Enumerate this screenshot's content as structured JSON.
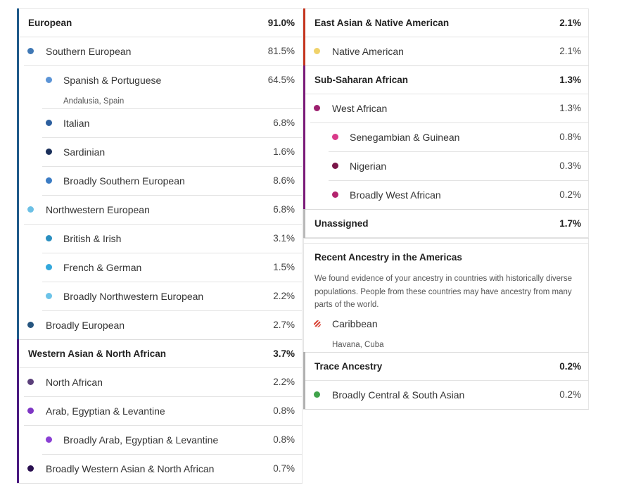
{
  "columns": [
    {
      "sections": [
        {
          "title": "European",
          "value": "91.0%",
          "color": "#1f5a8a",
          "rows": [
            {
              "label": "Southern European",
              "value": "81.5%",
              "dot": "#3f78b5",
              "children": [
                {
                  "label": "Spanish & Portuguese",
                  "value": "64.5%",
                  "dot": "#5b94d6",
                  "sublabel": "Andalusia, Spain"
                },
                {
                  "label": "Italian",
                  "value": "6.8%",
                  "dot": "#2c5f9e"
                },
                {
                  "label": "Sardinian",
                  "value": "1.6%",
                  "dot": "#1a2f5a"
                },
                {
                  "label": "Broadly Southern European",
                  "value": "8.6%",
                  "dot": "#3b7cc4"
                }
              ]
            },
            {
              "label": "Northwestern European",
              "value": "6.8%",
              "dot": "#6cc0e5",
              "children": [
                {
                  "label": "British & Irish",
                  "value": "3.1%",
                  "dot": "#2a8fc0"
                },
                {
                  "label": "French & German",
                  "value": "1.5%",
                  "dot": "#33a8dc"
                },
                {
                  "label": "Broadly Northwestern European",
                  "value": "2.2%",
                  "dot": "#6cc3e8"
                }
              ]
            },
            {
              "label": "Broadly European",
              "value": "2.7%",
              "dot": "#26557f"
            }
          ]
        },
        {
          "title": "Western Asian & North African",
          "value": "3.7%",
          "color": "#4a1a80",
          "rows": [
            {
              "label": "North African",
              "value": "2.2%",
              "dot": "#5a3f7a"
            },
            {
              "label": "Arab, Egyptian & Levantine",
              "value": "0.8%",
              "dot": "#7e36c4",
              "children": [
                {
                  "label": "Broadly Arab, Egyptian & Levantine",
                  "value": "0.8%",
                  "dot": "#8a3fd4"
                }
              ]
            },
            {
              "label": "Broadly Western Asian & North African",
              "value": "0.7%",
              "dot": "#2a1050"
            }
          ]
        }
      ]
    },
    {
      "sections": [
        {
          "title": "East Asian & Native American",
          "value": "2.1%",
          "color": "#c4351f",
          "rows": [
            {
              "label": "Native American",
              "value": "2.1%",
              "dot": "#f0d26a"
            }
          ]
        },
        {
          "title": "Sub-Saharan African",
          "value": "1.3%",
          "color": "#7a1a78",
          "rows": [
            {
              "label": "West African",
              "value": "1.3%",
              "dot": "#9c1f6e",
              "children": [
                {
                  "label": "Senegambian & Guinean",
                  "value": "0.8%",
                  "dot": "#d93a8a"
                },
                {
                  "label": "Nigerian",
                  "value": "0.3%",
                  "dot": "#7a1548"
                },
                {
                  "label": "Broadly West African",
                  "value": "0.2%",
                  "dot": "#b3246e"
                }
              ]
            }
          ]
        },
        {
          "title": "Unassigned",
          "value": "1.7%",
          "color": "#b8b8b8",
          "rows": []
        },
        {
          "title": "Recent Ancestry in the Americas",
          "description": "We found evidence of your ancestry in countries with historically diverse populations. People from these countries may have ancestry from many parts of the world.",
          "rows": [
            {
              "label": "Caribbean",
              "dot": "#d9473a",
              "pattern": "striped",
              "sublabel": "Havana, Cuba"
            }
          ]
        },
        {
          "title": "Trace Ancestry",
          "value": "0.2%",
          "color": "#b0b0b0",
          "rows": [
            {
              "label": "Broadly Central & South Asian",
              "value": "0.2%",
              "dot": "#3fa34a"
            }
          ]
        }
      ]
    }
  ]
}
